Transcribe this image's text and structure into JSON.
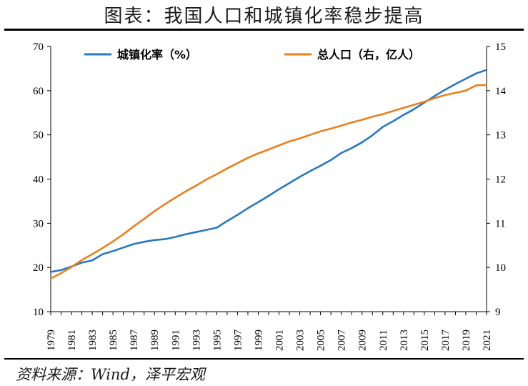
{
  "title": "图表：我国人口和城镇化率稳步提高",
  "source": "资料来源：Wind，泽平宏观",
  "chart_data": {
    "type": "line",
    "x": [
      1979,
      1980,
      1981,
      1982,
      1983,
      1984,
      1985,
      1986,
      1987,
      1988,
      1989,
      1990,
      1991,
      1992,
      1993,
      1994,
      1995,
      1996,
      1997,
      1998,
      1999,
      2000,
      2001,
      2002,
      2003,
      2004,
      2005,
      2006,
      2007,
      2008,
      2009,
      2010,
      2011,
      2012,
      2013,
      2014,
      2015,
      2016,
      2017,
      2018,
      2019,
      2020,
      2021
    ],
    "x_tick_labels": [
      "1979",
      "1981",
      "1983",
      "1985",
      "1987",
      "1989",
      "1991",
      "1993",
      "1995",
      "1997",
      "1999",
      "2001",
      "2003",
      "2005",
      "2007",
      "2009",
      "2011",
      "2013",
      "2015",
      "2017",
      "2019",
      "2021"
    ],
    "y_left": {
      "lim": [
        10,
        70
      ],
      "ticks": [
        "10",
        "20",
        "30",
        "40",
        "50",
        "60",
        "70"
      ]
    },
    "y_right": {
      "lim": [
        9,
        15
      ],
      "ticks": [
        "9",
        "10",
        "11",
        "12",
        "13",
        "14",
        "15"
      ]
    },
    "legend_position": "top",
    "grid": false,
    "series": [
      {
        "name": "城镇化率（%）",
        "axis": "left",
        "color": "#2878BE",
        "values": [
          19.0,
          19.4,
          20.2,
          21.1,
          21.6,
          23.0,
          23.7,
          24.5,
          25.3,
          25.8,
          26.2,
          26.4,
          26.9,
          27.5,
          28.0,
          28.5,
          29.0,
          30.5,
          31.9,
          33.4,
          34.8,
          36.2,
          37.7,
          39.1,
          40.5,
          41.8,
          43.0,
          44.3,
          45.9,
          47.0,
          48.3,
          49.9,
          51.8,
          53.1,
          54.5,
          55.8,
          57.3,
          58.8,
          60.2,
          61.5,
          62.7,
          63.9,
          64.7
        ]
      },
      {
        "name": "总人口（右，亿人）",
        "axis": "right",
        "color": "#E8801F",
        "values": [
          9.75,
          9.87,
          10.01,
          10.17,
          10.3,
          10.44,
          10.59,
          10.75,
          10.93,
          11.1,
          11.27,
          11.43,
          11.58,
          11.72,
          11.85,
          11.99,
          12.11,
          12.24,
          12.36,
          12.48,
          12.58,
          12.67,
          12.76,
          12.85,
          12.92,
          13.0,
          13.08,
          13.14,
          13.21,
          13.28,
          13.34,
          13.41,
          13.47,
          13.54,
          13.61,
          13.68,
          13.75,
          13.83,
          13.9,
          13.95,
          14.0,
          14.12,
          14.13
        ]
      }
    ]
  }
}
